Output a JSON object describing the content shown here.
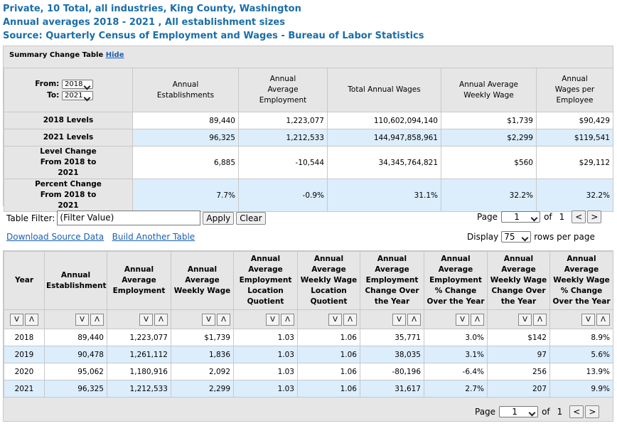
{
  "header": {
    "lines": [
      "Private, 10 Total, all industries, King County, Washington",
      "Annual averages 2018 - 2021 , All establishment sizes",
      "Source: Quarterly Census of Employment and Wages - Bureau of Labor Statistics"
    ]
  },
  "summary": {
    "title": "Summary Change Table",
    "hide": "Hide",
    "from_label": "From:",
    "from_value": "2018",
    "to_label": "To:",
    "to_value": "2021",
    "columns": [
      "Annual Establishments",
      "Annual Average Employment",
      "Total Annual Wages",
      "Annual Average Weekly Wage",
      "Annual Wages per Employee"
    ],
    "rows": [
      {
        "label": "2018 Levels",
        "values": [
          "89,440",
          "1,223,077",
          "110,602,094,140",
          "$1,739",
          "$90,429"
        ]
      },
      {
        "label": "2021 Levels",
        "values": [
          "96,325",
          "1,212,533",
          "144,947,858,961",
          "$2,299",
          "$119,541"
        ]
      },
      {
        "label": "Level Change From 2018 to 2021",
        "values": [
          "6,885",
          "-10,544",
          "34,345,764,821",
          "$560",
          "$29,112"
        ]
      },
      {
        "label": "Percent Change From 2018 to 2021",
        "values": [
          "7.7%",
          "-0.9%",
          "31.1%",
          "32.2%",
          "32.2%"
        ]
      }
    ]
  },
  "controls": {
    "filter_label": "Table Filter:",
    "filter_placeholder": "(Filter Value)",
    "apply": "Apply",
    "clear": "Clear",
    "page_label": "Page",
    "page_value": "1",
    "of": "of",
    "page_count": "1",
    "prev": "<",
    "next": ">",
    "download": "Download Source Data",
    "build": "Build Another Table",
    "display_label": "Display",
    "display_value": "75",
    "rows_per_page": "rows per page"
  },
  "table": {
    "columns": [
      "Year",
      "Annual Establishments",
      "Annual Average Employment",
      "Annual Average Weekly Wage",
      "Annual Average Employment Location Quotient",
      "Annual Average Weekly Wage Location Quotient",
      "Annual Average Employment Change Over the Year",
      "Annual Average Employment % Change Over the Year",
      "Annual Average Weekly Wage Change Over the Year",
      "Annual Average Weekly Wage % Change Over the Year"
    ],
    "sort_labels": [
      "V",
      "Λ"
    ],
    "rows": [
      [
        "2018",
        "89,440",
        "1,223,077",
        "$1,739",
        "1.03",
        "1.06",
        "35,771",
        "3.0%",
        "$142",
        "8.9%"
      ],
      [
        "2019",
        "90,478",
        "1,261,112",
        "1,836",
        "1.03",
        "1.06",
        "38,035",
        "3.1%",
        "97",
        "5.6%"
      ],
      [
        "2020",
        "95,062",
        "1,180,916",
        "2,092",
        "1.03",
        "1.06",
        "-80,196",
        "-6.4%",
        "256",
        "13.9%"
      ],
      [
        "2021",
        "96,325",
        "1,212,533",
        "2,299",
        "1.03",
        "1.06",
        "31,617",
        "2.7%",
        "207",
        "9.9%"
      ]
    ]
  },
  "footer": {
    "page_label": "Page",
    "page_value": "1",
    "of": "of",
    "page_count": "1",
    "prev": "<",
    "next": ">"
  }
}
